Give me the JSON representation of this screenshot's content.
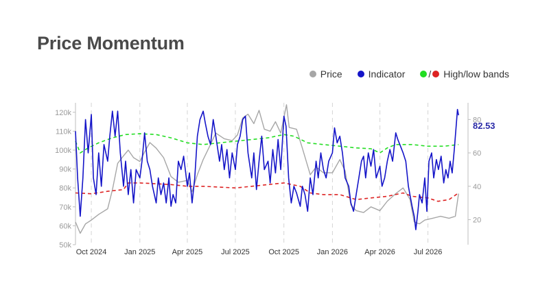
{
  "title": "Price Momentum",
  "legend": {
    "price": "Price",
    "indicator": "Indicator",
    "bands_sep": "/",
    "bands": "High/low bands"
  },
  "colors": {
    "price": "#a6a6a6",
    "indicator": "#1414c8",
    "high_band": "#22dd22",
    "low_band": "#dd2222",
    "last_value": "#2a2aa8"
  },
  "chart_data": {
    "type": "line",
    "last_value_label": "82.53",
    "x_ticks": [
      "Oct 2024",
      "Jan 2025",
      "Apr 2025",
      "Jul 2025",
      "Oct 2025",
      "Jan 2026",
      "Apr 2026",
      "Jul 2026"
    ],
    "x_range": [
      "2024-09-01",
      "2026-09-15"
    ],
    "y_left": {
      "label": "",
      "ticks": [
        "50k",
        "60k",
        "70k",
        "80k",
        "90k",
        "100k",
        "110k",
        "120k"
      ],
      "range": [
        50000,
        125000
      ]
    },
    "y_right": {
      "label": "",
      "ticks": [
        "20",
        "40",
        "60",
        "80"
      ],
      "range": [
        5,
        90
      ]
    },
    "grid": "vertical dashed at month ticks",
    "legend_position": "top-right",
    "series": [
      {
        "name": "Price",
        "axis": "left",
        "points": [
          [
            "2024-09-01",
            62000
          ],
          [
            "2024-09-10",
            56000
          ],
          [
            "2024-09-20",
            61000
          ],
          [
            "2024-10-01",
            63000
          ],
          [
            "2024-10-15",
            66000
          ],
          [
            "2024-11-01",
            69000
          ],
          [
            "2024-11-10",
            79000
          ],
          [
            "2024-11-20",
            93000
          ],
          [
            "2024-12-01",
            97000
          ],
          [
            "2024-12-10",
            100000
          ],
          [
            "2024-12-20",
            96000
          ],
          [
            "2025-01-01",
            94000
          ],
          [
            "2025-01-10",
            99000
          ],
          [
            "2025-01-20",
            104000
          ],
          [
            "2025-02-01",
            101000
          ],
          [
            "2025-02-15",
            96000
          ],
          [
            "2025-03-01",
            86000
          ],
          [
            "2025-03-15",
            83000
          ],
          [
            "2025-04-01",
            84000
          ],
          [
            "2025-04-10",
            78000
          ],
          [
            "2025-04-20",
            87000
          ],
          [
            "2025-05-01",
            95000
          ],
          [
            "2025-05-15",
            103000
          ],
          [
            "2025-05-25",
            109000
          ],
          [
            "2025-06-10",
            106000
          ],
          [
            "2025-06-25",
            105000
          ],
          [
            "2025-07-05",
            108000
          ],
          [
            "2025-07-15",
            117000
          ],
          [
            "2025-07-25",
            119000
          ],
          [
            "2025-08-05",
            114000
          ],
          [
            "2025-08-15",
            121000
          ],
          [
            "2025-08-25",
            111000
          ],
          [
            "2025-09-05",
            110000
          ],
          [
            "2025-09-15",
            115000
          ],
          [
            "2025-09-25",
            109000
          ],
          [
            "2025-10-06",
            124000
          ],
          [
            "2025-10-11",
            112000
          ],
          [
            "2025-10-25",
            111000
          ],
          [
            "2025-11-05",
            101000
          ],
          [
            "2025-11-20",
            87000
          ],
          [
            "2025-12-01",
            91000
          ],
          [
            "2025-12-15",
            88000
          ],
          [
            "2026-01-01",
            88000
          ],
          [
            "2026-01-15",
            95000
          ],
          [
            "2026-01-25",
            89000
          ],
          [
            "2026-02-05",
            71000
          ],
          [
            "2026-02-15",
            68000
          ],
          [
            "2026-03-01",
            67000
          ],
          [
            "2026-03-15",
            70000
          ],
          [
            "2026-04-01",
            68000
          ],
          [
            "2026-04-15",
            73000
          ],
          [
            "2026-05-01",
            77000
          ],
          [
            "2026-05-15",
            80000
          ],
          [
            "2026-05-28",
            74000
          ],
          [
            "2026-06-05",
            62000
          ],
          [
            "2026-06-15",
            61000
          ],
          [
            "2026-06-25",
            63000
          ],
          [
            "2026-07-10",
            64000
          ],
          [
            "2026-07-25",
            65000
          ],
          [
            "2026-08-10",
            64000
          ],
          [
            "2026-08-22",
            65000
          ],
          [
            "2026-08-28",
            77000
          ]
        ]
      },
      {
        "name": "Indicator",
        "axis": "right",
        "points": [
          [
            "2024-09-01",
            73
          ],
          [
            "2024-09-05",
            45
          ],
          [
            "2024-09-10",
            22
          ],
          [
            "2024-09-15",
            45
          ],
          [
            "2024-09-20",
            80
          ],
          [
            "2024-09-25",
            60
          ],
          [
            "2024-10-01",
            83
          ],
          [
            "2024-10-05",
            45
          ],
          [
            "2024-10-10",
            35
          ],
          [
            "2024-10-15",
            60
          ],
          [
            "2024-10-20",
            40
          ],
          [
            "2024-10-25",
            65
          ],
          [
            "2024-11-01",
            55
          ],
          [
            "2024-11-05",
            70
          ],
          [
            "2024-11-10",
            85
          ],
          [
            "2024-11-15",
            70
          ],
          [
            "2024-11-20",
            85
          ],
          [
            "2024-11-25",
            60
          ],
          [
            "2024-12-01",
            40
          ],
          [
            "2024-12-05",
            55
          ],
          [
            "2024-12-10",
            35
          ],
          [
            "2024-12-15",
            50
          ],
          [
            "2024-12-20",
            30
          ],
          [
            "2024-12-25",
            50
          ],
          [
            "2025-01-01",
            45
          ],
          [
            "2025-01-05",
            55
          ],
          [
            "2025-01-10",
            72
          ],
          [
            "2025-01-15",
            55
          ],
          [
            "2025-01-20",
            50
          ],
          [
            "2025-01-25",
            40
          ],
          [
            "2025-02-01",
            30
          ],
          [
            "2025-02-05",
            45
          ],
          [
            "2025-02-10",
            35
          ],
          [
            "2025-02-15",
            42
          ],
          [
            "2025-02-20",
            30
          ],
          [
            "2025-02-25",
            45
          ],
          [
            "2025-03-01",
            28
          ],
          [
            "2025-03-05",
            35
          ],
          [
            "2025-03-10",
            30
          ],
          [
            "2025-03-15",
            55
          ],
          [
            "2025-03-20",
            50
          ],
          [
            "2025-03-25",
            58
          ],
          [
            "2025-04-01",
            40
          ],
          [
            "2025-04-05",
            48
          ],
          [
            "2025-04-10",
            30
          ],
          [
            "2025-04-15",
            45
          ],
          [
            "2025-04-20",
            70
          ],
          [
            "2025-04-25",
            80
          ],
          [
            "2025-05-01",
            85
          ],
          [
            "2025-05-05",
            78
          ],
          [
            "2025-05-10",
            70
          ],
          [
            "2025-05-15",
            65
          ],
          [
            "2025-05-20",
            80
          ],
          [
            "2025-05-25",
            70
          ],
          [
            "2025-06-01",
            55
          ],
          [
            "2025-06-05",
            65
          ],
          [
            "2025-06-10",
            50
          ],
          [
            "2025-06-15",
            62
          ],
          [
            "2025-06-20",
            45
          ],
          [
            "2025-06-25",
            60
          ],
          [
            "2025-07-01",
            50
          ],
          [
            "2025-07-05",
            65
          ],
          [
            "2025-07-10",
            70
          ],
          [
            "2025-07-15",
            80
          ],
          [
            "2025-07-20",
            82
          ],
          [
            "2025-07-25",
            60
          ],
          [
            "2025-08-01",
            45
          ],
          [
            "2025-08-05",
            60
          ],
          [
            "2025-08-10",
            38
          ],
          [
            "2025-08-15",
            55
          ],
          [
            "2025-08-20",
            70
          ],
          [
            "2025-08-25",
            50
          ],
          [
            "2025-09-01",
            55
          ],
          [
            "2025-09-05",
            42
          ],
          [
            "2025-09-10",
            62
          ],
          [
            "2025-09-15",
            48
          ],
          [
            "2025-09-20",
            68
          ],
          [
            "2025-09-25",
            50
          ],
          [
            "2025-10-01",
            82
          ],
          [
            "2025-10-05",
            76
          ],
          [
            "2025-10-10",
            45
          ],
          [
            "2025-10-15",
            30
          ],
          [
            "2025-10-20",
            40
          ],
          [
            "2025-10-25",
            36
          ],
          [
            "2025-11-01",
            28
          ],
          [
            "2025-11-05",
            40
          ],
          [
            "2025-11-10",
            35
          ],
          [
            "2025-11-15",
            25
          ],
          [
            "2025-11-20",
            45
          ],
          [
            "2025-11-25",
            35
          ],
          [
            "2025-12-01",
            55
          ],
          [
            "2025-12-05",
            45
          ],
          [
            "2025-12-10",
            60
          ],
          [
            "2025-12-15",
            50
          ],
          [
            "2025-12-20",
            45
          ],
          [
            "2025-12-25",
            55
          ],
          [
            "2026-01-01",
            60
          ],
          [
            "2026-01-05",
            75
          ],
          [
            "2026-01-10",
            66
          ],
          [
            "2026-01-15",
            70
          ],
          [
            "2026-01-20",
            60
          ],
          [
            "2026-01-25",
            45
          ],
          [
            "2026-02-01",
            40
          ],
          [
            "2026-02-05",
            30
          ],
          [
            "2026-02-10",
            25
          ],
          [
            "2026-02-15",
            35
          ],
          [
            "2026-02-20",
            45
          ],
          [
            "2026-02-25",
            55
          ],
          [
            "2026-03-01",
            58
          ],
          [
            "2026-03-05",
            45
          ],
          [
            "2026-03-10",
            60
          ],
          [
            "2026-03-15",
            52
          ],
          [
            "2026-03-20",
            62
          ],
          [
            "2026-03-25",
            45
          ],
          [
            "2026-04-01",
            52
          ],
          [
            "2026-04-05",
            40
          ],
          [
            "2026-04-10",
            45
          ],
          [
            "2026-04-15",
            55
          ],
          [
            "2026-04-20",
            62
          ],
          [
            "2026-04-25",
            55
          ],
          [
            "2026-05-01",
            72
          ],
          [
            "2026-05-05",
            68
          ],
          [
            "2026-05-10",
            64
          ],
          [
            "2026-05-15",
            60
          ],
          [
            "2026-05-20",
            55
          ],
          [
            "2026-05-25",
            40
          ],
          [
            "2026-06-01",
            28
          ],
          [
            "2026-06-05",
            22
          ],
          [
            "2026-06-08",
            14
          ],
          [
            "2026-06-12",
            25
          ],
          [
            "2026-06-15",
            35
          ],
          [
            "2026-06-20",
            30
          ],
          [
            "2026-06-25",
            45
          ],
          [
            "2026-06-29",
            25
          ],
          [
            "2026-07-03",
            55
          ],
          [
            "2026-07-08",
            60
          ],
          [
            "2026-07-12",
            45
          ],
          [
            "2026-07-17",
            56
          ],
          [
            "2026-07-21",
            50
          ],
          [
            "2026-07-26",
            58
          ],
          [
            "2026-07-31",
            42
          ],
          [
            "2026-08-04",
            50
          ],
          [
            "2026-08-08",
            45
          ],
          [
            "2026-08-12",
            55
          ],
          [
            "2026-08-16",
            48
          ],
          [
            "2026-08-20",
            62
          ],
          [
            "2026-08-24",
            78
          ],
          [
            "2026-08-26",
            86
          ],
          [
            "2026-08-28",
            82.53
          ]
        ]
      },
      {
        "name": "High band",
        "axis": "right",
        "points": [
          [
            "2024-09-01",
            67
          ],
          [
            "2024-09-10",
            60
          ],
          [
            "2024-09-25",
            63
          ],
          [
            "2024-10-15",
            66
          ],
          [
            "2024-11-10",
            69
          ],
          [
            "2024-12-05",
            71
          ],
          [
            "2025-01-01",
            71.5
          ],
          [
            "2025-02-01",
            71
          ],
          [
            "2025-03-01",
            69
          ],
          [
            "2025-04-01",
            66
          ],
          [
            "2025-05-01",
            65
          ],
          [
            "2025-06-01",
            66
          ],
          [
            "2025-07-01",
            67
          ],
          [
            "2025-08-01",
            68
          ],
          [
            "2025-09-01",
            69
          ],
          [
            "2025-10-01",
            71
          ],
          [
            "2025-10-20",
            70
          ],
          [
            "2025-11-15",
            66
          ],
          [
            "2025-12-15",
            65
          ],
          [
            "2026-01-15",
            64
          ],
          [
            "2026-02-15",
            63
          ],
          [
            "2026-03-15",
            62.5
          ],
          [
            "2026-04-01",
            60
          ],
          [
            "2026-04-15",
            63
          ],
          [
            "2026-05-01",
            65
          ],
          [
            "2026-06-01",
            65
          ],
          [
            "2026-07-01",
            64
          ],
          [
            "2026-08-01",
            64
          ],
          [
            "2026-08-28",
            65
          ]
        ]
      },
      {
        "name": "Low band",
        "axis": "right",
        "points": [
          [
            "2024-09-01",
            36
          ],
          [
            "2024-10-01",
            35.5
          ],
          [
            "2024-11-01",
            37
          ],
          [
            "2024-12-01",
            38
          ],
          [
            "2024-12-10",
            42
          ],
          [
            "2025-01-01",
            42
          ],
          [
            "2025-02-01",
            41.5
          ],
          [
            "2025-03-01",
            41
          ],
          [
            "2025-04-01",
            40
          ],
          [
            "2025-05-01",
            40
          ],
          [
            "2025-06-01",
            39.5
          ],
          [
            "2025-07-01",
            39
          ],
          [
            "2025-08-01",
            40
          ],
          [
            "2025-09-01",
            41
          ],
          [
            "2025-10-01",
            42
          ],
          [
            "2025-11-01",
            40
          ],
          [
            "2025-11-20",
            36
          ],
          [
            "2025-12-15",
            35
          ],
          [
            "2026-01-15",
            35
          ],
          [
            "2026-02-15",
            32
          ],
          [
            "2026-03-15",
            33
          ],
          [
            "2026-04-15",
            34
          ],
          [
            "2026-05-15",
            36
          ],
          [
            "2026-06-01",
            34
          ],
          [
            "2026-07-01",
            33
          ],
          [
            "2026-07-20",
            31
          ],
          [
            "2026-08-10",
            32
          ],
          [
            "2026-08-28",
            36
          ]
        ]
      }
    ]
  }
}
